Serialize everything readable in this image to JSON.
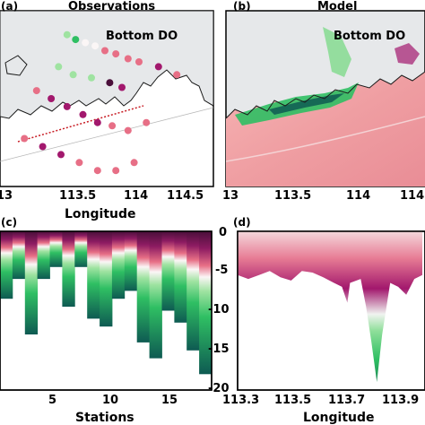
{
  "colors": {
    "land": "#e6e8ea",
    "coast": "#1a1a1a",
    "ocean_model": "#f2a3a5",
    "low_do_dark": "#4a0f3a",
    "mid_magenta": "#a2186d",
    "pink": "#e76f86",
    "white": "#fbf6f6",
    "light_green": "#9fe3a1",
    "green": "#2fbf63",
    "dark_teal": "#0e5a52"
  },
  "panels": {
    "a": {
      "label": "(a)",
      "title": "Observations",
      "inset": "Bottom DO",
      "xlabel": "Longitude",
      "xticks": [
        "13",
        "113.5",
        "114",
        "114.5"
      ]
    },
    "b": {
      "label": "(b)",
      "title": "Model",
      "inset": "Bottom DO",
      "xticks": [
        "13",
        "113.5",
        "114",
        "114."
      ]
    },
    "c": {
      "label": "(c)",
      "xlabel": "Stations",
      "xticks": [
        "5",
        "10",
        "15"
      ],
      "yticks": [
        "0",
        "-5",
        "-10",
        "-15",
        "-20"
      ]
    },
    "d": {
      "label": "(d)",
      "xlabel": "Longitude",
      "xticks": [
        "113.3",
        "113.5",
        "113.7",
        "113.9"
      ]
    }
  },
  "chart_data": [
    {
      "panel": "a",
      "type": "scatter",
      "xlabel": "Longitude",
      "xlim": [
        113.0,
        114.75
      ],
      "points": [
        {
          "x": 113.55,
          "y": 22.45,
          "v": 0.8
        },
        {
          "x": 113.62,
          "y": 22.42,
          "v": 0.9
        },
        {
          "x": 113.7,
          "y": 22.4,
          "v": 0.55
        },
        {
          "x": 113.78,
          "y": 22.38,
          "v": 0.5
        },
        {
          "x": 113.86,
          "y": 22.35,
          "v": 0.45
        },
        {
          "x": 113.95,
          "y": 22.33,
          "v": 0.4
        },
        {
          "x": 114.05,
          "y": 22.3,
          "v": 0.35
        },
        {
          "x": 114.14,
          "y": 22.28,
          "v": 0.3
        },
        {
          "x": 114.3,
          "y": 22.25,
          "v": 0.25
        },
        {
          "x": 114.45,
          "y": 22.2,
          "v": 0.35
        },
        {
          "x": 113.3,
          "y": 22.1,
          "v": 0.3
        },
        {
          "x": 113.42,
          "y": 22.05,
          "v": 0.2
        },
        {
          "x": 113.55,
          "y": 22.0,
          "v": 0.15
        },
        {
          "x": 113.68,
          "y": 21.95,
          "v": 0.25
        },
        {
          "x": 113.8,
          "y": 21.9,
          "v": 0.2
        },
        {
          "x": 113.92,
          "y": 21.88,
          "v": 0.3
        },
        {
          "x": 114.05,
          "y": 21.85,
          "v": 0.35
        },
        {
          "x": 114.2,
          "y": 21.9,
          "v": 0.4
        },
        {
          "x": 113.2,
          "y": 21.8,
          "v": 0.3
        },
        {
          "x": 113.35,
          "y": 21.75,
          "v": 0.25
        },
        {
          "x": 113.5,
          "y": 21.7,
          "v": 0.2
        },
        {
          "x": 113.65,
          "y": 21.65,
          "v": 0.3
        },
        {
          "x": 113.8,
          "y": 21.6,
          "v": 0.4
        },
        {
          "x": 113.95,
          "y": 21.6,
          "v": 0.35
        },
        {
          "x": 114.1,
          "y": 21.65,
          "v": 0.3
        },
        {
          "x": 113.6,
          "y": 22.2,
          "v": 0.85
        },
        {
          "x": 113.75,
          "y": 22.18,
          "v": 0.7
        },
        {
          "x": 113.9,
          "y": 22.15,
          "v": 0.05
        },
        {
          "x": 114.0,
          "y": 22.12,
          "v": 0.1
        },
        {
          "x": 113.48,
          "y": 22.25,
          "v": 0.75
        }
      ]
    },
    {
      "panel": "b",
      "type": "heatmap",
      "xlim": [
        113.0,
        114.75
      ]
    },
    {
      "panel": "c",
      "type": "heatmap",
      "xlabel": "Stations",
      "ylim": [
        -20,
        0
      ],
      "xlim": [
        1,
        17
      ],
      "columns": [
        {
          "station": 1,
          "depth": -8.5
        },
        {
          "station": 2,
          "depth": -6.0
        },
        {
          "station": 3,
          "depth": -13.0
        },
        {
          "station": 4,
          "depth": -6.0
        },
        {
          "station": 5,
          "depth": -4.5
        },
        {
          "station": 6,
          "depth": -9.5
        },
        {
          "station": 7,
          "depth": -4.5
        },
        {
          "station": 8,
          "depth": -11.0
        },
        {
          "station": 9,
          "depth": -12.0
        },
        {
          "station": 10,
          "depth": -8.5
        },
        {
          "station": 11,
          "depth": -7.5
        },
        {
          "station": 12,
          "depth": -14.0
        },
        {
          "station": 13,
          "depth": -16.0
        },
        {
          "station": 14,
          "depth": -10.0
        },
        {
          "station": 15,
          "depth": -11.5
        },
        {
          "station": 16,
          "depth": -15.0
        },
        {
          "station": 17,
          "depth": -18.0
        }
      ]
    },
    {
      "panel": "d",
      "type": "heatmap",
      "xlabel": "Longitude",
      "xlim": [
        113.3,
        114.0
      ],
      "ylim": [
        -20,
        0
      ],
      "bottom": [
        {
          "x": 113.3,
          "y": -5.5
        },
        {
          "x": 113.34,
          "y": -6.0
        },
        {
          "x": 113.38,
          "y": -5.5
        },
        {
          "x": 113.42,
          "y": -5.0
        },
        {
          "x": 113.46,
          "y": -5.8
        },
        {
          "x": 113.5,
          "y": -6.2
        },
        {
          "x": 113.54,
          "y": -5.0
        },
        {
          "x": 113.58,
          "y": -5.2
        },
        {
          "x": 113.62,
          "y": -5.8
        },
        {
          "x": 113.66,
          "y": -6.5
        },
        {
          "x": 113.69,
          "y": -7.0
        },
        {
          "x": 113.71,
          "y": -9.0
        },
        {
          "x": 113.72,
          "y": -6.5
        },
        {
          "x": 113.76,
          "y": -6.0
        },
        {
          "x": 113.78,
          "y": -9.5
        },
        {
          "x": 113.8,
          "y": -14.0
        },
        {
          "x": 113.82,
          "y": -19.0
        },
        {
          "x": 113.84,
          "y": -13.0
        },
        {
          "x": 113.87,
          "y": -6.5
        },
        {
          "x": 113.9,
          "y": -7.0
        },
        {
          "x": 113.93,
          "y": -8.0
        },
        {
          "x": 113.96,
          "y": -6.0
        },
        {
          "x": 113.99,
          "y": -5.5
        }
      ]
    }
  ]
}
